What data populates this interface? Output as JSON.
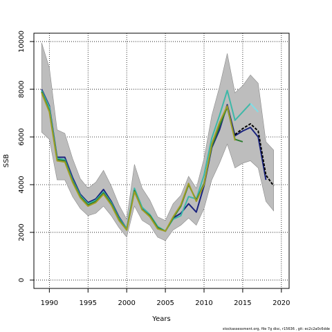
{
  "chart_data": {
    "type": "line",
    "xlabel": "Years",
    "ylabel": "SSB",
    "xlim": [
      1988,
      2021
    ],
    "ylim": [
      -350,
      10350
    ],
    "x_ticks": [
      1990,
      1995,
      2000,
      2005,
      2010,
      2015,
      2020
    ],
    "y_ticks": [
      0,
      2000,
      4000,
      6000,
      8000,
      10000
    ],
    "grid": "dotted",
    "band": {
      "x": [
        1989,
        1990,
        1991,
        1992,
        1993,
        1994,
        1995,
        1996,
        1997,
        1998,
        1999,
        2000,
        2001,
        2002,
        2003,
        2004,
        2005,
        2006,
        2007,
        2008,
        2009,
        2010,
        2011,
        2012,
        2013,
        2014,
        2015,
        2016,
        2017,
        2018,
        2019
      ],
      "upper": [
        9950,
        8900,
        6300,
        6150,
        5100,
        4250,
        3850,
        4100,
        4600,
        3950,
        3150,
        2550,
        4850,
        3850,
        3350,
        2650,
        2500,
        3200,
        3550,
        4350,
        3850,
        5100,
        6900,
        8100,
        9500,
        7850,
        8150,
        8600,
        8250,
        5800,
        5450
      ],
      "lower": [
        6200,
        5900,
        4200,
        4200,
        3500,
        3000,
        2700,
        2800,
        3100,
        2700,
        2200,
        1800,
        3100,
        2500,
        2300,
        1800,
        1650,
        2100,
        2300,
        2600,
        2300,
        3000,
        4200,
        4900,
        5700,
        4700,
        4900,
        5000,
        4700,
        3300,
        2900
      ]
    },
    "series": [
      {
        "color": "#1a237e",
        "dash": "",
        "x": [
          1989,
          1990,
          1991,
          1992,
          1993,
          1994,
          1995,
          1996,
          1997,
          1998,
          1999,
          2000,
          2001,
          2002,
          2003,
          2004,
          2005,
          2006,
          2007,
          2008,
          2009,
          2010,
          2011,
          2012,
          2013,
          2014,
          2015,
          2016,
          2017,
          2018
        ],
        "y": [
          8000,
          7300,
          5150,
          5150,
          4300,
          3600,
          3250,
          3400,
          3800,
          3300,
          2650,
          2150,
          3800,
          3000,
          2700,
          2200,
          2050,
          2600,
          2800,
          3200,
          2850,
          3950,
          5550,
          6300,
          7350,
          6050,
          6250,
          6400,
          6000,
          4200
        ]
      },
      {
        "color": "#000000",
        "dash": "4,2",
        "x": [
          2014,
          2015,
          2016,
          2017,
          2018,
          2019
        ],
        "y": [
          6100,
          6350,
          6550,
          6250,
          4400,
          3950
        ]
      },
      {
        "color": "#3db8a8",
        "dash": "",
        "x": [
          1989,
          1990,
          1991,
          1992,
          1993,
          1994,
          1995,
          1996,
          1997,
          1998,
          1999,
          2000,
          2001,
          2002,
          2003,
          2004,
          2005,
          2006,
          2007,
          2008,
          2009,
          2010,
          2011,
          2012,
          2013,
          2014,
          2015,
          2016
        ],
        "y": [
          7950,
          7250,
          5100,
          5050,
          4200,
          3550,
          3200,
          3350,
          3700,
          3250,
          2600,
          2150,
          3850,
          3050,
          2750,
          2250,
          2050,
          2550,
          2700,
          3500,
          3400,
          4400,
          5950,
          6900,
          7950,
          6700,
          7050,
          7400
        ]
      },
      {
        "color": "#80dee8",
        "dash": "",
        "x": [
          2016,
          2017
        ],
        "y": [
          7400,
          7050
        ]
      },
      {
        "color": "#2e7d32",
        "dash": "",
        "x": [
          1989,
          1990,
          1991,
          1992,
          1993,
          1994,
          1995,
          1996,
          1997,
          1998,
          1999,
          2000,
          2001,
          2002,
          2003,
          2004,
          2005,
          2006,
          2007,
          2008,
          2009,
          2010,
          2011,
          2012,
          2013,
          2014,
          2015
        ],
        "y": [
          7900,
          7100,
          5050,
          5000,
          4150,
          3500,
          3150,
          3300,
          3650,
          3200,
          2550,
          2100,
          3750,
          2950,
          2700,
          2200,
          2050,
          2600,
          3100,
          4000,
          3350,
          4050,
          5600,
          6450,
          7250,
          5900,
          5800
        ]
      },
      {
        "color": "#9e9d24",
        "dash": "",
        "x": [
          1989,
          1990,
          1991,
          1992,
          1993,
          1994,
          1995,
          1996,
          1997,
          1998,
          1999,
          2000,
          2001,
          2002,
          2003,
          2004,
          2005,
          2006,
          2007,
          2008,
          2009,
          2010,
          2011,
          2012,
          2013,
          2014
        ],
        "y": [
          7850,
          7050,
          5000,
          4950,
          4100,
          3450,
          3100,
          3250,
          3600,
          3150,
          2500,
          2100,
          3700,
          2950,
          2650,
          2150,
          2050,
          2650,
          3150,
          4050,
          3300,
          4000,
          5700,
          6600,
          7300,
          5850
        ]
      }
    ]
  },
  "footer": "stockassessment.org, file 7g disc, r15636 , git: ec2c2a0c6dde"
}
